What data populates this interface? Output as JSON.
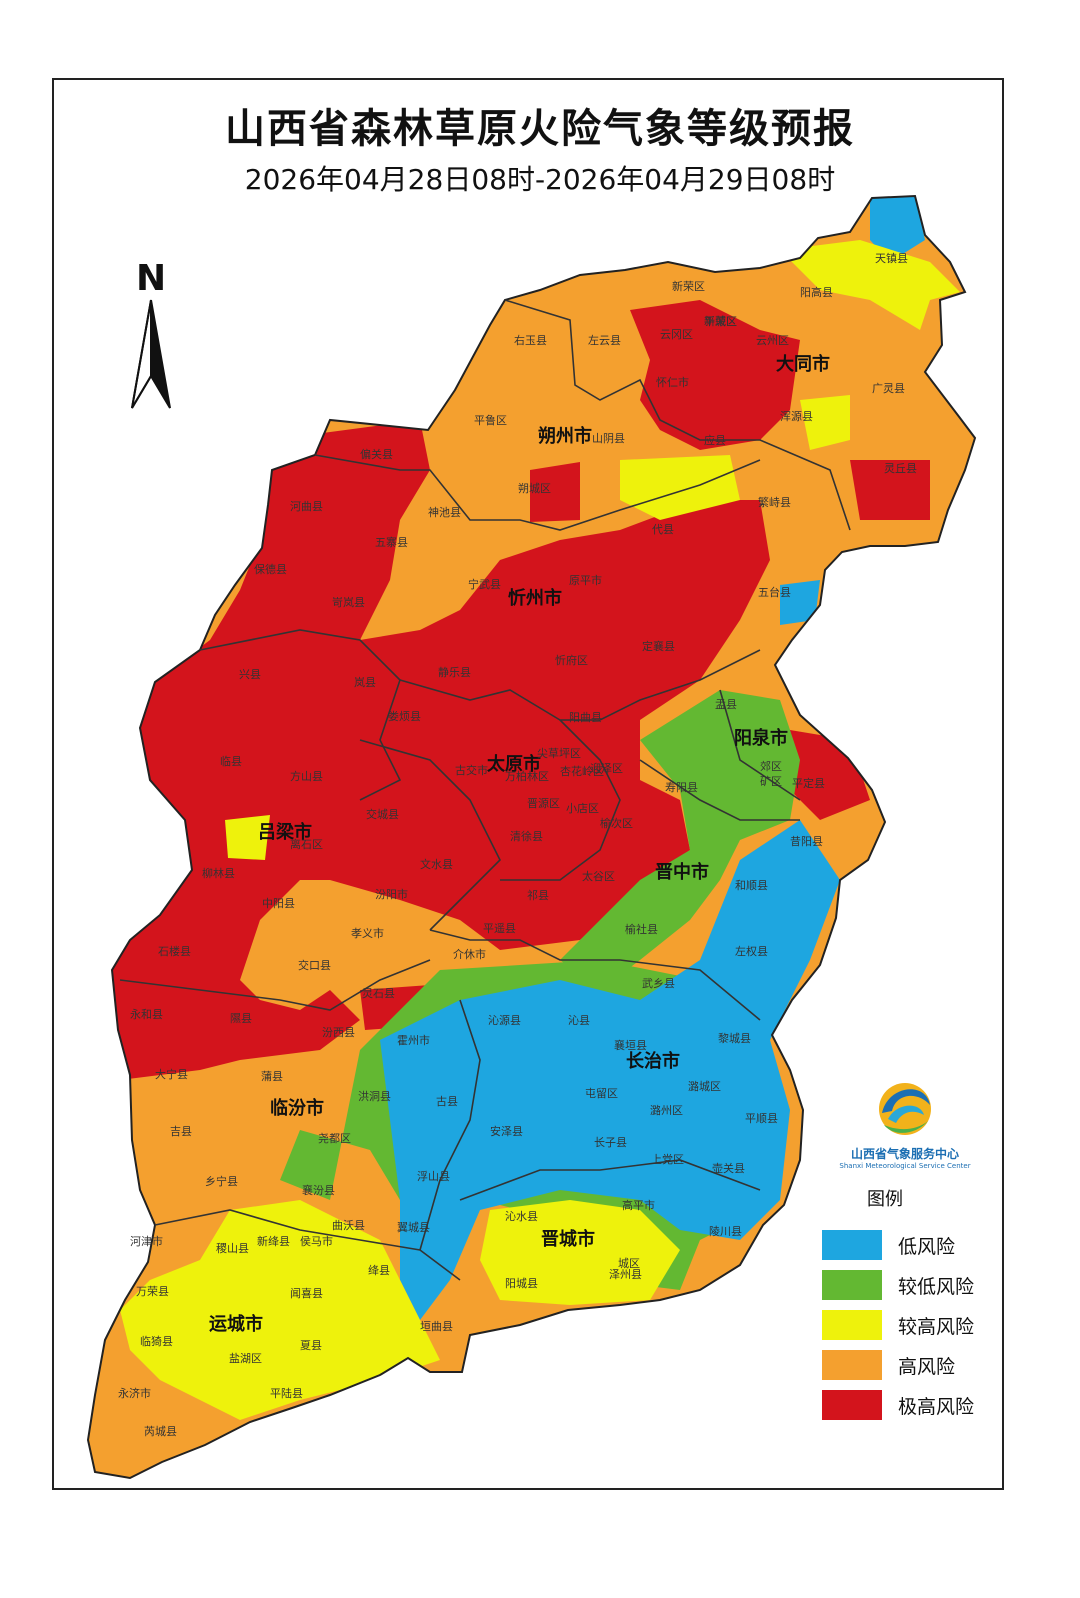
{
  "title": "山西省森林草原火险气象等级预报",
  "subtitle": "2026年04月28日08时-2026年04月29日08时",
  "north_label": "N",
  "logo": {
    "cn": "山西省气象服务中心",
    "en": "Shanxi Meteorological Service Center"
  },
  "legend": {
    "title": "图例",
    "items": [
      {
        "label": "低风险",
        "color": "#1ea6e0"
      },
      {
        "label": "较低风险",
        "color": "#63b832"
      },
      {
        "label": "较高风险",
        "color": "#eef20c"
      },
      {
        "label": "高风险",
        "color": "#f4a02f"
      },
      {
        "label": "极高风险",
        "color": "#d3141c"
      }
    ]
  },
  "cities": [
    "大同市",
    "朔州市",
    "忻州市",
    "阳泉市",
    "太原市",
    "吕梁市",
    "晋中市",
    "长治市",
    "临汾市",
    "晋城市",
    "运城市"
  ],
  "counties": [
    "天镇县",
    "阳高县",
    "新荣区",
    "左云县",
    "右玉县",
    "云冈区",
    "平城区",
    "云州区",
    "广灵县",
    "新荣区",
    "浑源县",
    "灵丘县",
    "平鲁区",
    "山阴县",
    "朔城区",
    "应县",
    "繁峙县",
    "怀仁市",
    "偏关县",
    "河曲县",
    "神池县",
    "五寨县",
    "代县",
    "保德县",
    "宁武县",
    "原平市",
    "五台县",
    "岢岚县",
    "兴县",
    "静乐县",
    "忻府区",
    "定襄县",
    "岚县",
    "娄烦县",
    "阳曲县",
    "盂县",
    "古交市",
    "尖草坪区",
    "万柏林区",
    "杏花岭区",
    "迎泽区",
    "晋源区",
    "小店区",
    "寿阳县",
    "郊区",
    "矿区",
    "平定县",
    "临县",
    "方山县",
    "交城县",
    "清徐县",
    "榆次区",
    "离石区",
    "文水县",
    "昔阳县",
    "太谷区",
    "和顺县",
    "柳林县",
    "中阳县",
    "汾阳市",
    "祁县",
    "孝义市",
    "平遥县",
    "榆社县",
    "左权县",
    "石楼县",
    "交口县",
    "介休市",
    "灵石县",
    "武乡县",
    "永和县",
    "隰县",
    "汾西县",
    "沁源县",
    "沁县",
    "黎城县",
    "襄垣县",
    "大宁县",
    "霍州市",
    "蒲县",
    "洪洞县",
    "古县",
    "屯留区",
    "潞城区",
    "潞州区",
    "平顺县",
    "吉县",
    "尧都区",
    "安泽县",
    "长子县",
    "上党区",
    "壶关县",
    "乡宁县",
    "襄汾县",
    "浮山县",
    "沁水县",
    "高平市",
    "陵川县",
    "河津市",
    "稷山县",
    "新绛县",
    "侯马市",
    "曲沃县",
    "翼城县",
    "泽州县",
    "城区",
    "万荣县",
    "闻喜县",
    "绛县",
    "阳城县",
    "临猗县",
    "盐湖区",
    "夏县",
    "垣曲县",
    "永济市",
    "平陆县",
    "芮城县"
  ]
}
